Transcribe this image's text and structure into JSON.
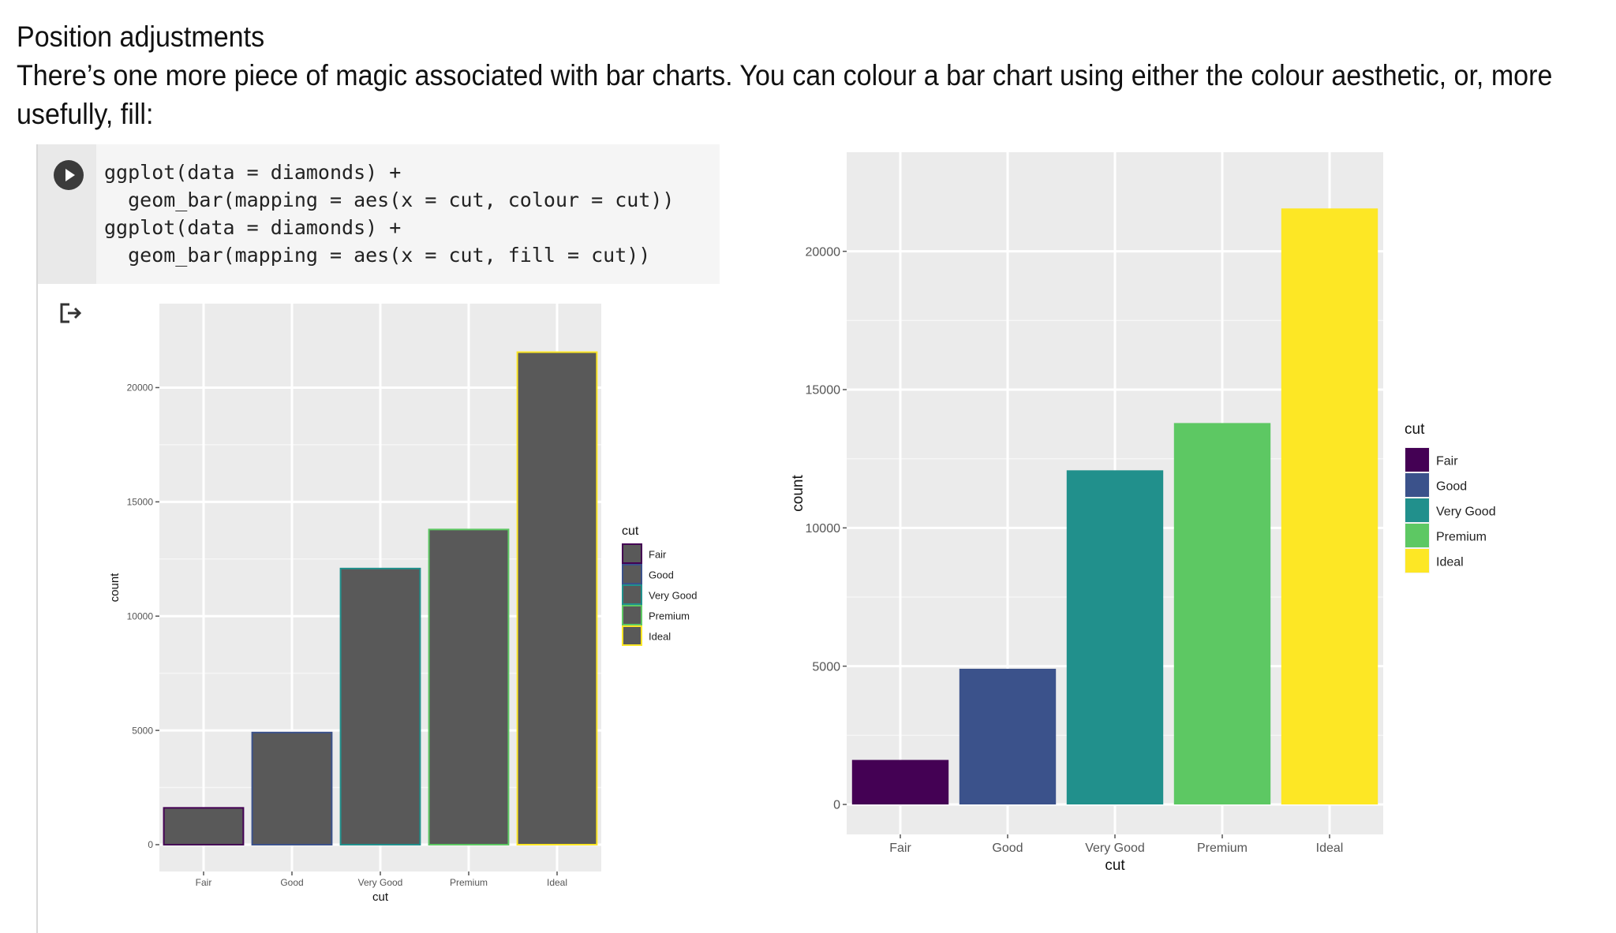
{
  "heading": {
    "title": "Position adjustments",
    "line1": "There’s one more piece of magic associated with bar charts. You can colour a bar chart using either the colour aesthetic, or, more",
    "line2": "usefully, fill:"
  },
  "code": {
    "lines": [
      "ggplot(data = diamonds) +",
      "  geom_bar(mapping = aes(x = cut, colour = cut))",
      "ggplot(data = diamonds) +",
      "  geom_bar(mapping = aes(x = cut, fill = cut))"
    ]
  },
  "icons": {
    "run": "play-icon",
    "output": "output-exit-icon"
  },
  "chart_data": [
    {
      "type": "bar",
      "title": "",
      "xlabel": "cut",
      "ylabel": "count",
      "categories": [
        "Fair",
        "Good",
        "Very Good",
        "Premium",
        "Ideal"
      ],
      "values": [
        1610,
        4906,
        12082,
        13791,
        21551
      ],
      "ylim": [
        0,
        22500
      ],
      "yticks": [
        0,
        5000,
        10000,
        15000,
        20000
      ],
      "aesthetic": "colour",
      "bar_fill": "#595959",
      "outline_colors": [
        "#440154",
        "#3B528B",
        "#21908C",
        "#5DC863",
        "#FDE725"
      ],
      "legend": {
        "title": "cut",
        "position": "right",
        "entries": [
          "Fair",
          "Good",
          "Very Good",
          "Premium",
          "Ideal"
        ]
      },
      "grid": true,
      "panel_background": "#ebebeb"
    },
    {
      "type": "bar",
      "title": "",
      "xlabel": "cut",
      "ylabel": "count",
      "categories": [
        "Fair",
        "Good",
        "Very Good",
        "Premium",
        "Ideal"
      ],
      "values": [
        1610,
        4906,
        12082,
        13791,
        21551
      ],
      "ylim": [
        0,
        22500
      ],
      "yticks": [
        0,
        5000,
        10000,
        15000,
        20000
      ],
      "aesthetic": "fill",
      "fill_colors": [
        "#440154",
        "#3B528B",
        "#21908C",
        "#5DC863",
        "#FDE725"
      ],
      "legend": {
        "title": "cut",
        "position": "right",
        "entries": [
          "Fair",
          "Good",
          "Very Good",
          "Premium",
          "Ideal"
        ]
      },
      "grid": true,
      "panel_background": "#ebebeb"
    }
  ]
}
